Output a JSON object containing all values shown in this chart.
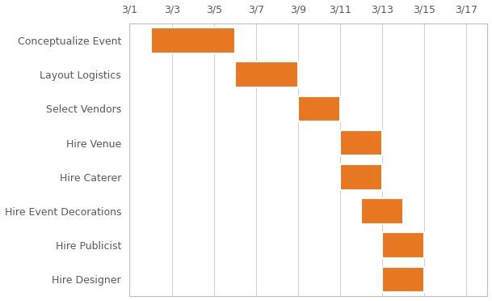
{
  "tasks": [
    "Conceptualize Event",
    "Layout Logistics",
    "Select Vendors",
    "Hire Venue",
    "Hire Caterer",
    "Hire Event Decorations",
    "Hire Publicist",
    "Hire Designer"
  ],
  "starts": [
    2,
    6,
    9,
    11,
    11,
    12,
    13,
    13
  ],
  "durations": [
    4,
    3,
    2,
    2,
    2,
    2,
    2,
    2
  ],
  "bar_color": "#E87722",
  "bar_edge_color": "white",
  "x_tick_positions": [
    1,
    3,
    5,
    7,
    9,
    11,
    13,
    15,
    17
  ],
  "x_tick_labels": [
    "3/1",
    "3/3",
    "3/5",
    "3/7",
    "3/9",
    "3/11",
    "3/13",
    "3/15",
    "3/17"
  ],
  "xlim": [
    1,
    18
  ],
  "ylim": [
    -0.5,
    7.5
  ],
  "background_color": "#ffffff",
  "grid_color": "#d0d0d0",
  "bar_height": 0.75,
  "text_color": "#595959",
  "spine_color": "#c0c0c0",
  "tick_fontsize": 9,
  "label_fontsize": 9
}
